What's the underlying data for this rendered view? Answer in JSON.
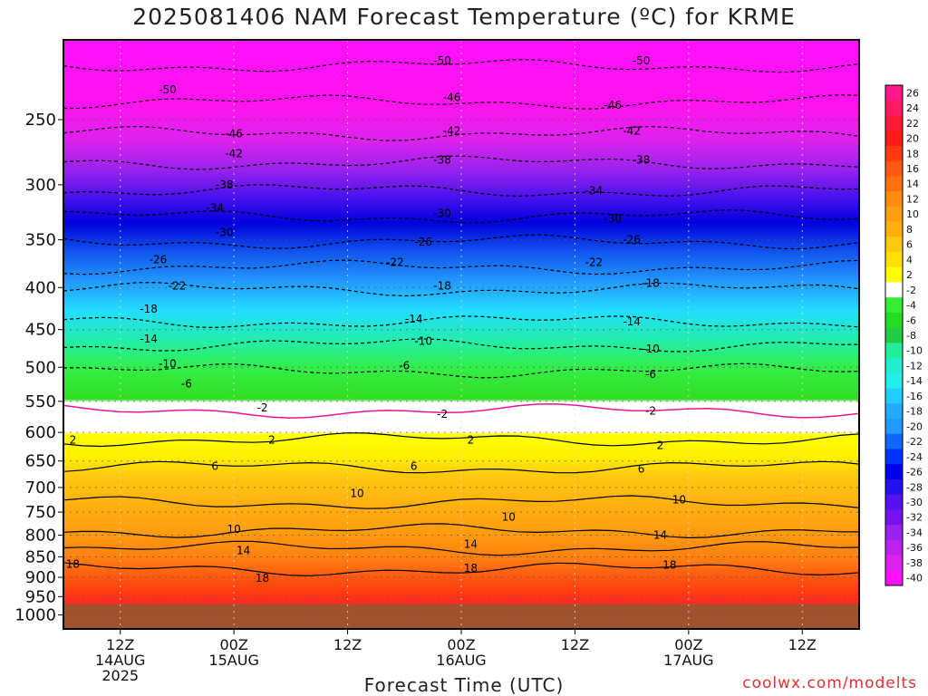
{
  "page": {
    "title": "2025081406 NAM Forecast Temperature (ºC) for KRME",
    "xlabel": "Forecast Time (UTC)",
    "credit": "coolwx.com/modelts"
  },
  "chart_data": {
    "type": "heatmap",
    "title": "2025081406 NAM Forecast Temperature (ºC) for KRME",
    "xlabel": "Forecast Time (UTC)",
    "ylabel": "",
    "y_axis": {
      "reversed": true,
      "range_hpa": [
        1040,
        200
      ],
      "ticks": [
        250,
        300,
        350,
        400,
        450,
        500,
        550,
        600,
        650,
        700,
        750,
        800,
        850,
        900,
        950,
        1000
      ]
    },
    "x_axis": {
      "range_hours": [
        0,
        84
      ],
      "ticks": [
        {
          "hour": 6,
          "line1": "12Z",
          "line2": "14AUG",
          "line3": "2025"
        },
        {
          "hour": 18,
          "line1": "00Z",
          "line2": "15AUG",
          "line3": ""
        },
        {
          "hour": 30,
          "line1": "12Z",
          "line2": "",
          "line3": ""
        },
        {
          "hour": 42,
          "line1": "00Z",
          "line2": "16AUG",
          "line3": ""
        },
        {
          "hour": 54,
          "line1": "12Z",
          "line2": "",
          "line3": ""
        },
        {
          "hour": 66,
          "line1": "00Z",
          "line2": "17AUG",
          "line3": ""
        },
        {
          "hour": 78,
          "line1": "12Z",
          "line2": "",
          "line3": ""
        }
      ]
    },
    "grid": true,
    "terrain_surface_hpa": 970,
    "colorbar": {
      "labels": [
        "26",
        "24",
        "22",
        "20",
        "18",
        "16",
        "14",
        "12",
        "10",
        "8",
        "6",
        "4",
        "2",
        "-2",
        "-4",
        "-6",
        "-8",
        "-10",
        "-12",
        "-14",
        "-16",
        "-18",
        "-20",
        "-22",
        "-24",
        "-26",
        "-28",
        "-30",
        "-32",
        "-34",
        "-36",
        "-38",
        "-40"
      ],
      "colors": [
        "#ff1a8c",
        "#ff1a66",
        "#ff1a3a",
        "#ff1a1a",
        "#ff3a10",
        "#ff5a10",
        "#ff7010",
        "#ff8c10",
        "#ff9e10",
        "#ffb010",
        "#ffc810",
        "#ffe000",
        "#ffff00",
        "#ffffff",
        "#33ee33",
        "#22dd22",
        "#22cc44",
        "#22ee99",
        "#22eecc",
        "#22eeee",
        "#22ccff",
        "#22aaff",
        "#2299ff",
        "#1166ff",
        "#0033ff",
        "#0000ee",
        "#2211ee",
        "#5511ee",
        "#7711ee",
        "#9922ee",
        "#bb22ee",
        "#dd22ee",
        "#ff11ff"
      ],
      "legend_placement": "right"
    },
    "contour_labels": [
      {
        "v": "-50",
        "h": 11,
        "p": 230
      },
      {
        "v": "-50",
        "h": 40,
        "p": 212
      },
      {
        "v": "-50",
        "h": 61,
        "p": 212
      },
      {
        "v": "-46",
        "h": 18,
        "p": 260
      },
      {
        "v": "-46",
        "h": 41,
        "p": 235
      },
      {
        "v": "-46",
        "h": 58,
        "p": 240
      },
      {
        "v": "-42",
        "h": 18,
        "p": 275
      },
      {
        "v": "-42",
        "h": 41,
        "p": 258
      },
      {
        "v": "-42",
        "h": 60,
        "p": 258
      },
      {
        "v": "-38",
        "h": 17,
        "p": 300
      },
      {
        "v": "-38",
        "h": 40,
        "p": 280
      },
      {
        "v": "-38",
        "h": 61,
        "p": 280
      },
      {
        "v": "-34",
        "h": 16,
        "p": 320
      },
      {
        "v": "-34",
        "h": 56,
        "p": 305
      },
      {
        "v": "-30",
        "h": 17,
        "p": 343
      },
      {
        "v": "-30",
        "h": 40,
        "p": 325
      },
      {
        "v": "-30",
        "h": 58,
        "p": 330
      },
      {
        "v": "-26",
        "h": 10,
        "p": 370
      },
      {
        "v": "-26",
        "h": 38,
        "p": 352
      },
      {
        "v": "-26",
        "h": 60,
        "p": 350
      },
      {
        "v": "-22",
        "h": 12,
        "p": 398
      },
      {
        "v": "-22",
        "h": 35,
        "p": 373
      },
      {
        "v": "-22",
        "h": 56,
        "p": 373
      },
      {
        "v": "-18",
        "h": 9,
        "p": 425
      },
      {
        "v": "-18",
        "h": 40,
        "p": 398
      },
      {
        "v": "-18",
        "h": 62,
        "p": 395
      },
      {
        "v": "-14",
        "h": 9,
        "p": 462
      },
      {
        "v": "-14",
        "h": 37,
        "p": 437
      },
      {
        "v": "-14",
        "h": 60,
        "p": 440
      },
      {
        "v": "-10",
        "h": 11,
        "p": 495
      },
      {
        "v": "-10",
        "h": 38,
        "p": 465
      },
      {
        "v": "-10",
        "h": 62,
        "p": 475
      },
      {
        "v": "-6",
        "h": 13,
        "p": 524
      },
      {
        "v": "-6",
        "h": 36,
        "p": 498
      },
      {
        "v": "-6",
        "h": 62,
        "p": 510
      },
      {
        "v": "-2",
        "h": 21,
        "p": 560
      },
      {
        "v": "-2",
        "h": 40,
        "p": 570
      },
      {
        "v": "-2",
        "h": 62,
        "p": 565
      },
      {
        "v": "2",
        "h": 1,
        "p": 613
      },
      {
        "v": "2",
        "h": 22,
        "p": 613
      },
      {
        "v": "2",
        "h": 43,
        "p": 613
      },
      {
        "v": "2",
        "h": 63,
        "p": 622
      },
      {
        "v": "6",
        "h": 16,
        "p": 660
      },
      {
        "v": "6",
        "h": 37,
        "p": 660
      },
      {
        "v": "6",
        "h": 61,
        "p": 665
      },
      {
        "v": "10",
        "h": 31,
        "p": 712
      },
      {
        "v": "10",
        "h": 47,
        "p": 760
      },
      {
        "v": "10",
        "h": 18,
        "p": 787
      },
      {
        "v": "10",
        "h": 65,
        "p": 725
      },
      {
        "v": "14",
        "h": 19,
        "p": 835
      },
      {
        "v": "14",
        "h": 43,
        "p": 820
      },
      {
        "v": "14",
        "h": 63,
        "p": 800
      },
      {
        "v": "18",
        "h": 1,
        "p": 868
      },
      {
        "v": "18",
        "h": 21,
        "p": 902
      },
      {
        "v": "18",
        "h": 43,
        "p": 878
      },
      {
        "v": "18",
        "h": 64,
        "p": 870
      }
    ]
  }
}
